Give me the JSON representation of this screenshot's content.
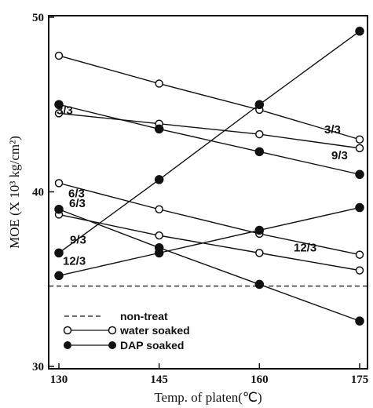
{
  "chart_data": {
    "type": "line",
    "xlabel": "Temp. of platen(℃)",
    "ylabel": "MOE (X 10³ kg/cm²)",
    "x": [
      130,
      145,
      160,
      175
    ],
    "xlim": [
      130,
      175
    ],
    "ylim": [
      30,
      50
    ],
    "yticks": [
      30,
      40,
      50
    ],
    "grid": false,
    "legend_position": "bottom-left",
    "baseline": {
      "legend": "non-treat",
      "value": 34.6
    },
    "series": [
      {
        "name": "3/3",
        "treatment": "water",
        "values": [
          47.8,
          46.2,
          44.7,
          43.0
        ]
      },
      {
        "name": "9/3",
        "treatment": "water",
        "values": [
          44.5,
          43.9,
          43.3,
          42.5
        ]
      },
      {
        "name": "12/3",
        "treatment": "water",
        "values": [
          40.5,
          39.0,
          37.6,
          36.4
        ]
      },
      {
        "name": "6/3",
        "treatment": "water",
        "values": [
          38.7,
          37.5,
          36.5,
          35.5
        ]
      },
      {
        "name": "3/3",
        "treatment": "dap",
        "values": [
          45.0,
          43.6,
          42.3,
          41.0
        ]
      },
      {
        "name": "9/3",
        "treatment": "dap",
        "values": [
          36.5,
          40.7,
          45.0,
          49.2
        ]
      },
      {
        "name": "6/3",
        "treatment": "dap",
        "values": [
          39.0,
          36.8,
          34.7,
          32.6
        ]
      },
      {
        "name": "12/3",
        "treatment": "dap",
        "values": [
          35.2,
          36.5,
          37.8,
          39.1
        ]
      }
    ],
    "legend": [
      {
        "key": "baseline",
        "label": "non-treat"
      },
      {
        "key": "water",
        "label": "water soaked"
      },
      {
        "key": "dap",
        "label": "DAP soaked"
      }
    ]
  }
}
